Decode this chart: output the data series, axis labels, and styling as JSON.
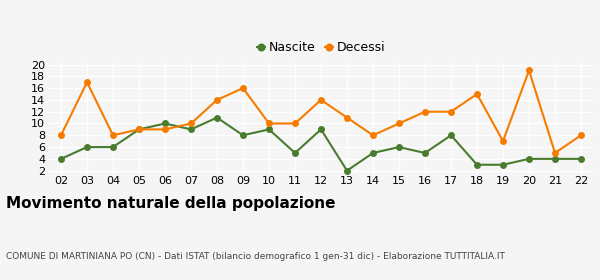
{
  "years": [
    2,
    3,
    4,
    5,
    6,
    7,
    8,
    9,
    10,
    11,
    12,
    13,
    14,
    15,
    16,
    17,
    18,
    19,
    20,
    21,
    22
  ],
  "nascite": [
    4,
    6,
    6,
    9,
    10,
    9,
    11,
    8,
    9,
    5,
    9,
    2,
    5,
    6,
    5,
    8,
    3,
    3,
    4,
    4,
    4
  ],
  "decessi": [
    8,
    17,
    8,
    9,
    9,
    10,
    14,
    16,
    10,
    10,
    14,
    11,
    8,
    10,
    12,
    12,
    15,
    7,
    19,
    5,
    8
  ],
  "nascite_color": "#4a7c2f",
  "decessi_color": "#f57c00",
  "nascite_label": "Nascite",
  "decessi_label": "Decessi",
  "yticks": [
    2,
    4,
    6,
    8,
    10,
    12,
    14,
    16,
    18,
    20
  ],
  "xlabel_labels": [
    "02",
    "03",
    "04",
    "05",
    "06",
    "07",
    "08",
    "09",
    "10",
    "11",
    "12",
    "13",
    "14",
    "15",
    "16",
    "17",
    "18",
    "19",
    "20",
    "21",
    "22"
  ],
  "title": "Movimento naturale della popolazione",
  "subtitle": "COMUNE DI MARTINIANA PO (CN) - Dati ISTAT (bilancio demografico 1 gen-31 dic) - Elaborazione TUTTITALIA.IT",
  "bg_color": "#f5f5f5",
  "grid_color": "#ffffff",
  "marker_size": 4,
  "line_width": 1.5,
  "title_fontsize": 11,
  "subtitle_fontsize": 6.5,
  "tick_fontsize": 8,
  "legend_fontsize": 9
}
